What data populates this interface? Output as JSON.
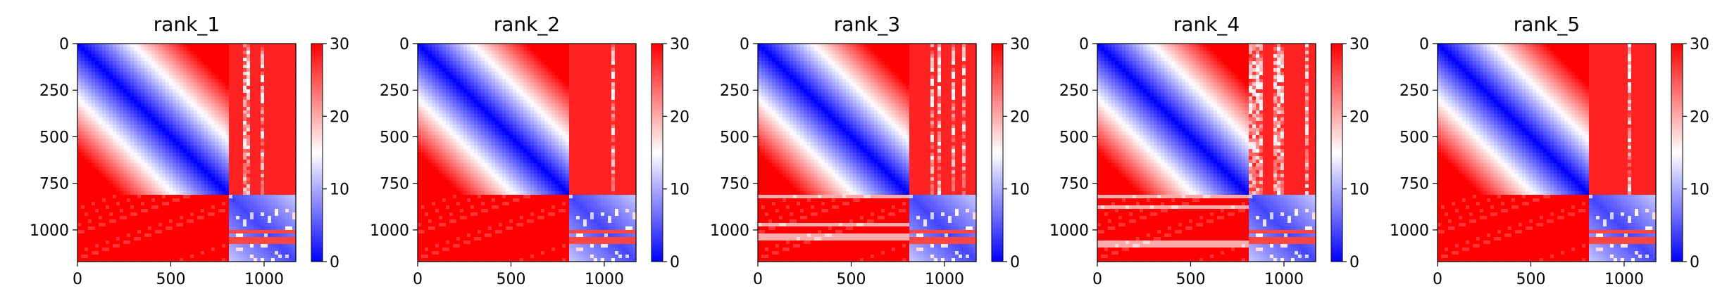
{
  "chart_data": [
    {
      "type": "heatmap",
      "title": "rank_1",
      "x_ticks": [
        0,
        500,
        1000
      ],
      "y_ticks": [
        0,
        250,
        500,
        750,
        1000
      ],
      "xlim": [
        0,
        1170
      ],
      "ylim": [
        1170,
        0
      ],
      "block_boundary": 810,
      "colorbar": {
        "ticks": [
          0,
          10,
          20,
          30
        ],
        "range": [
          0,
          30
        ],
        "colormap": "bwr"
      },
      "right_panel_streaks": 0.05,
      "bottom_panel_streaks": 0.0
    },
    {
      "type": "heatmap",
      "title": "rank_2",
      "x_ticks": [
        0,
        500,
        1000
      ],
      "y_ticks": [
        0,
        250,
        500,
        750,
        1000
      ],
      "xlim": [
        0,
        1170
      ],
      "ylim": [
        1170,
        0
      ],
      "block_boundary": 810,
      "colorbar": {
        "ticks": [
          0,
          10,
          20,
          30
        ],
        "range": [
          0,
          30
        ],
        "colormap": "bwr"
      },
      "right_panel_streaks": 0.08,
      "bottom_panel_streaks": 0.05
    },
    {
      "type": "heatmap",
      "title": "rank_3",
      "x_ticks": [
        0,
        500,
        1000
      ],
      "y_ticks": [
        0,
        250,
        500,
        750,
        1000
      ],
      "xlim": [
        0,
        1170
      ],
      "ylim": [
        1170,
        0
      ],
      "block_boundary": 810,
      "colorbar": {
        "ticks": [
          0,
          10,
          20,
          30
        ],
        "range": [
          0,
          30
        ],
        "colormap": "bwr"
      },
      "right_panel_streaks": 0.18,
      "bottom_panel_streaks": 0.15
    },
    {
      "type": "heatmap",
      "title": "rank_4",
      "x_ticks": [
        0,
        500,
        1000
      ],
      "y_ticks": [
        0,
        250,
        500,
        750,
        1000
      ],
      "xlim": [
        0,
        1170
      ],
      "ylim": [
        1170,
        0
      ],
      "block_boundary": 810,
      "colorbar": {
        "ticks": [
          0,
          10,
          20,
          30
        ],
        "range": [
          0,
          30
        ],
        "colormap": "bwr"
      },
      "right_panel_streaks": 0.25,
      "bottom_panel_streaks": 0.25
    },
    {
      "type": "heatmap",
      "title": "rank_5",
      "x_ticks": [
        0,
        500,
        1000
      ],
      "y_ticks": [
        0,
        250,
        500,
        750,
        1000
      ],
      "xlim": [
        0,
        1170
      ],
      "ylim": [
        1170,
        0
      ],
      "block_boundary": 810,
      "colorbar": {
        "ticks": [
          0,
          10,
          20,
          30
        ],
        "range": [
          0,
          30
        ],
        "colormap": "bwr"
      },
      "right_panel_streaks": 0.05,
      "bottom_panel_streaks": 0.0
    }
  ]
}
